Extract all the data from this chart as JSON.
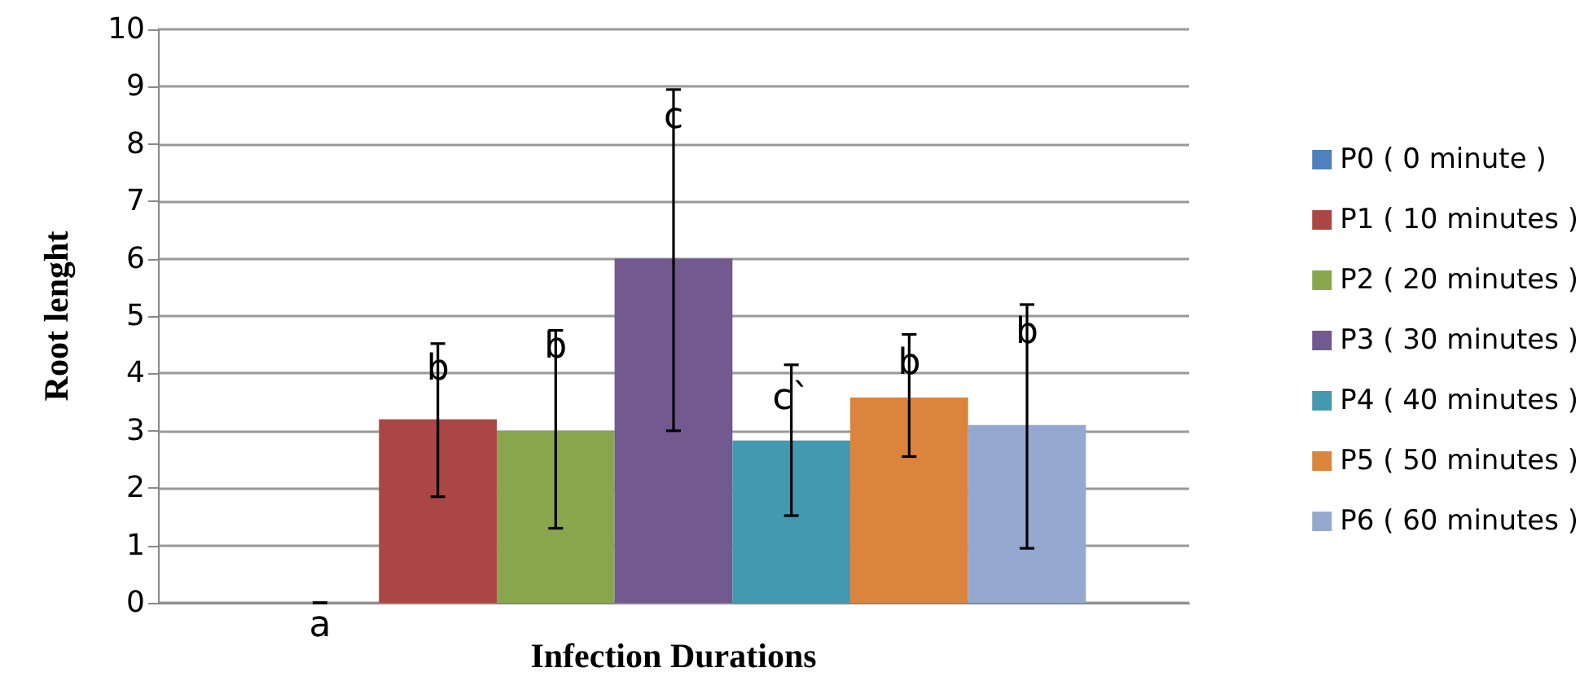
{
  "chart_data": {
    "type": "bar",
    "xlabel": "Infection Durations",
    "ylabel": "Root lenght",
    "categories": [
      null
    ],
    "series": [
      {
        "name": "P0 ( 0 minute )",
        "color": "#4f81bd",
        "values": [
          0
        ],
        "errors": [
          0
        ]
      },
      {
        "name": "P1 ( 10 minutes )",
        "color": "#aa4644",
        "values": [
          3.2
        ],
        "errors": [
          [
            1.85,
            4.52
          ]
        ]
      },
      {
        "name": "P2 ( 20 minutes )",
        "color": "#8aa64d",
        "values": [
          3.0
        ],
        "errors": [
          [
            1.3,
            4.75
          ]
        ]
      },
      {
        "name": "P3 ( 30 minutes )",
        "color": "#725990",
        "values": [
          6.0
        ],
        "errors": [
          [
            3.0,
            8.95
          ]
        ]
      },
      {
        "name": "P4 ( 40 minutes )",
        "color": "#4399b0",
        "values": [
          2.83
        ],
        "errors": [
          [
            1.52,
            4.15
          ]
        ]
      },
      {
        "name": "P5 ( 50 minutes )",
        "color": "#db843d",
        "values": [
          3.58
        ],
        "errors": [
          [
            2.55,
            4.68
          ]
        ]
      },
      {
        "name": "P6 ( 60 minutes )",
        "color": "#95a9d0",
        "values": [
          3.1
        ],
        "errors": [
          [
            0.95,
            5.2
          ]
        ]
      }
    ],
    "annotations": [
      "a",
      {
        "text": "b",
        "y": 4.07
      },
      {
        "text": "b",
        "y": 4.46
      },
      {
        "text": "c",
        "y": 8.47
      },
      {
        "text": "c`",
        "y": 3.57
      },
      {
        "text": "b",
        "y": 4.17
      },
      {
        "text": "b",
        "y": 4.71
      }
    ],
    "ylim": [
      0,
      10
    ],
    "yticks": [
      0,
      1,
      2,
      3,
      4,
      5,
      6,
      7,
      8,
      9,
      10
    ],
    "grid": "y",
    "legend": "right"
  }
}
